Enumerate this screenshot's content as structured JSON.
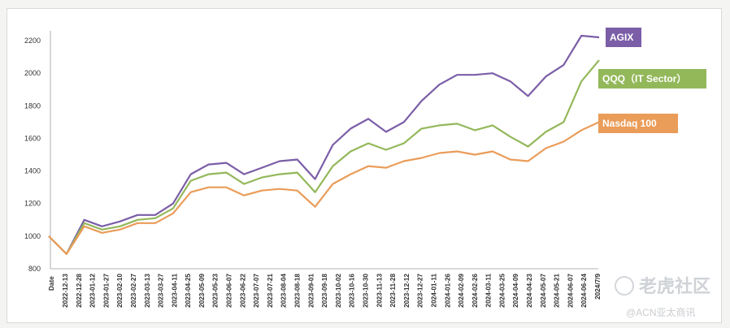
{
  "chart_data": {
    "type": "line",
    "x_axis_title": "Date",
    "x_ticks": [
      "2022-12-13",
      "2022-12-28",
      "2023-01-12",
      "2023-01-27",
      "2023-02-10",
      "2023-02-27",
      "2023-03-13",
      "2023-03-27",
      "2023-04-11",
      "2023-04-25",
      "2023-05-09",
      "2023-05-23",
      "2023-06-07",
      "2023-06-22",
      "2023-07-07",
      "2023-07-21",
      "2023-08-04",
      "2023-08-18",
      "2023-09-01",
      "2023-09-18",
      "2023-10-02",
      "2023-10-16",
      "2023-10-30",
      "2023-11-13",
      "2023-11-28",
      "2023-12-12",
      "2023-12-27",
      "2024-01-11",
      "2024-01-26",
      "2024-02-09",
      "2024-02-26",
      "2024-03-11",
      "2024-03-25",
      "2024-04-09",
      "2024-04-23",
      "2024-05-07",
      "2024-05-21",
      "2024-06-07",
      "2024-06-24",
      "2024/7/9"
    ],
    "y_ticks": [
      800,
      1000,
      1200,
      1400,
      1600,
      1800,
      2000,
      2200
    ],
    "ylim": [
      800,
      2260
    ],
    "grid": false,
    "legend_placement": "right, at line ends",
    "series": [
      {
        "name": "AGIX",
        "color": "#7b5ea7",
        "values": [
          1000,
          890,
          1100,
          1060,
          1090,
          1130,
          1130,
          1200,
          1380,
          1440,
          1450,
          1380,
          1420,
          1460,
          1470,
          1350,
          1560,
          1660,
          1720,
          1640,
          1700,
          1830,
          1930,
          1990,
          1990,
          2000,
          1950,
          1860,
          1980,
          2050,
          2230,
          2220
        ]
      },
      {
        "name": "QQQ（IT Sector）",
        "color": "#93b85a",
        "values": [
          1000,
          890,
          1080,
          1040,
          1060,
          1100,
          1110,
          1170,
          1340,
          1380,
          1390,
          1320,
          1360,
          1380,
          1390,
          1270,
          1430,
          1520,
          1570,
          1530,
          1570,
          1660,
          1680,
          1690,
          1650,
          1680,
          1610,
          1550,
          1640,
          1700,
          1950,
          2080
        ]
      },
      {
        "name": "Nasdaq 100",
        "color": "#ea9c59",
        "values": [
          1000,
          890,
          1060,
          1020,
          1040,
          1080,
          1080,
          1140,
          1270,
          1300,
          1300,
          1250,
          1280,
          1290,
          1280,
          1180,
          1320,
          1380,
          1430,
          1420,
          1460,
          1480,
          1510,
          1520,
          1500,
          1520,
          1470,
          1460,
          1540,
          1580,
          1650,
          1700
        ]
      }
    ]
  },
  "watermark": {
    "brand": "老虎社区",
    "handle": "@ACN亚太商讯"
  }
}
